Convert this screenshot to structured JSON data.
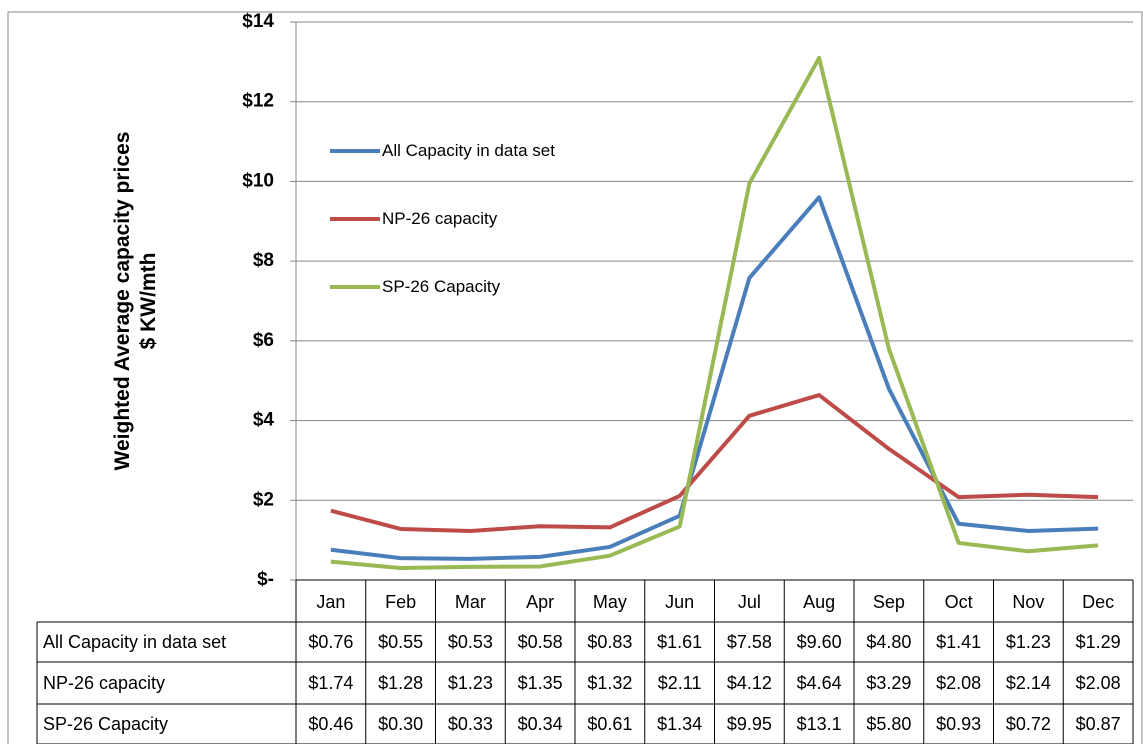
{
  "chart_data": {
    "type": "line",
    "y_label": [
      "Weighted Average capacity prices",
      "$ KW/mth"
    ],
    "categories": [
      "Jan",
      "Feb",
      "Mar",
      "Apr",
      "May",
      "Jun",
      "Jul",
      "Aug",
      "Sep",
      "Oct",
      "Nov",
      "Dec"
    ],
    "series": [
      {
        "name": "All Capacity in data set",
        "color": "#4a7ebb",
        "values": [
          0.76,
          0.55,
          0.53,
          0.58,
          0.83,
          1.61,
          7.58,
          9.6,
          4.8,
          1.41,
          1.23,
          1.29
        ],
        "value_labels": [
          "$0.76",
          "$0.55",
          "$0.53",
          "$0.58",
          "$0.83",
          "$1.61",
          "$7.58",
          "$9.60",
          "$4.80",
          "$1.41",
          "$1.23",
          "$1.29"
        ]
      },
      {
        "name": "NP-26 capacity",
        "color": "#be4b48",
        "values": [
          1.74,
          1.28,
          1.23,
          1.35,
          1.32,
          2.11,
          4.12,
          4.64,
          3.29,
          2.08,
          2.14,
          2.08
        ],
        "value_labels": [
          "$1.74",
          "$1.28",
          "$1.23",
          "$1.35",
          "$1.32",
          "$2.11",
          "$4.12",
          "$4.64",
          "$3.29",
          "$2.08",
          "$2.14",
          "$2.08"
        ]
      },
      {
        "name": "SP-26 Capacity",
        "color": "#98b954",
        "values": [
          0.46,
          0.3,
          0.33,
          0.34,
          0.61,
          1.34,
          9.95,
          13.1,
          5.8,
          0.93,
          0.72,
          0.87
        ],
        "value_labels": [
          "$0.46",
          "$0.30",
          "$0.33",
          "$0.34",
          "$0.61",
          "$1.34",
          "$9.95",
          "$13.1",
          "$5.80",
          "$0.93",
          "$0.72",
          "$0.87"
        ]
      }
    ],
    "ylim": [
      0,
      14
    ],
    "yticks": [
      {
        "value": 0,
        "label": "$-"
      },
      {
        "value": 2,
        "label": "$2"
      },
      {
        "value": 4,
        "label": "$4"
      },
      {
        "value": 6,
        "label": "$6"
      },
      {
        "value": 8,
        "label": "$8"
      },
      {
        "value": 10,
        "label": "$10"
      },
      {
        "value": 12,
        "label": "$12"
      },
      {
        "value": 14,
        "label": "$14"
      }
    ],
    "grid": true,
    "legend": "upper-left",
    "data_table": true
  }
}
